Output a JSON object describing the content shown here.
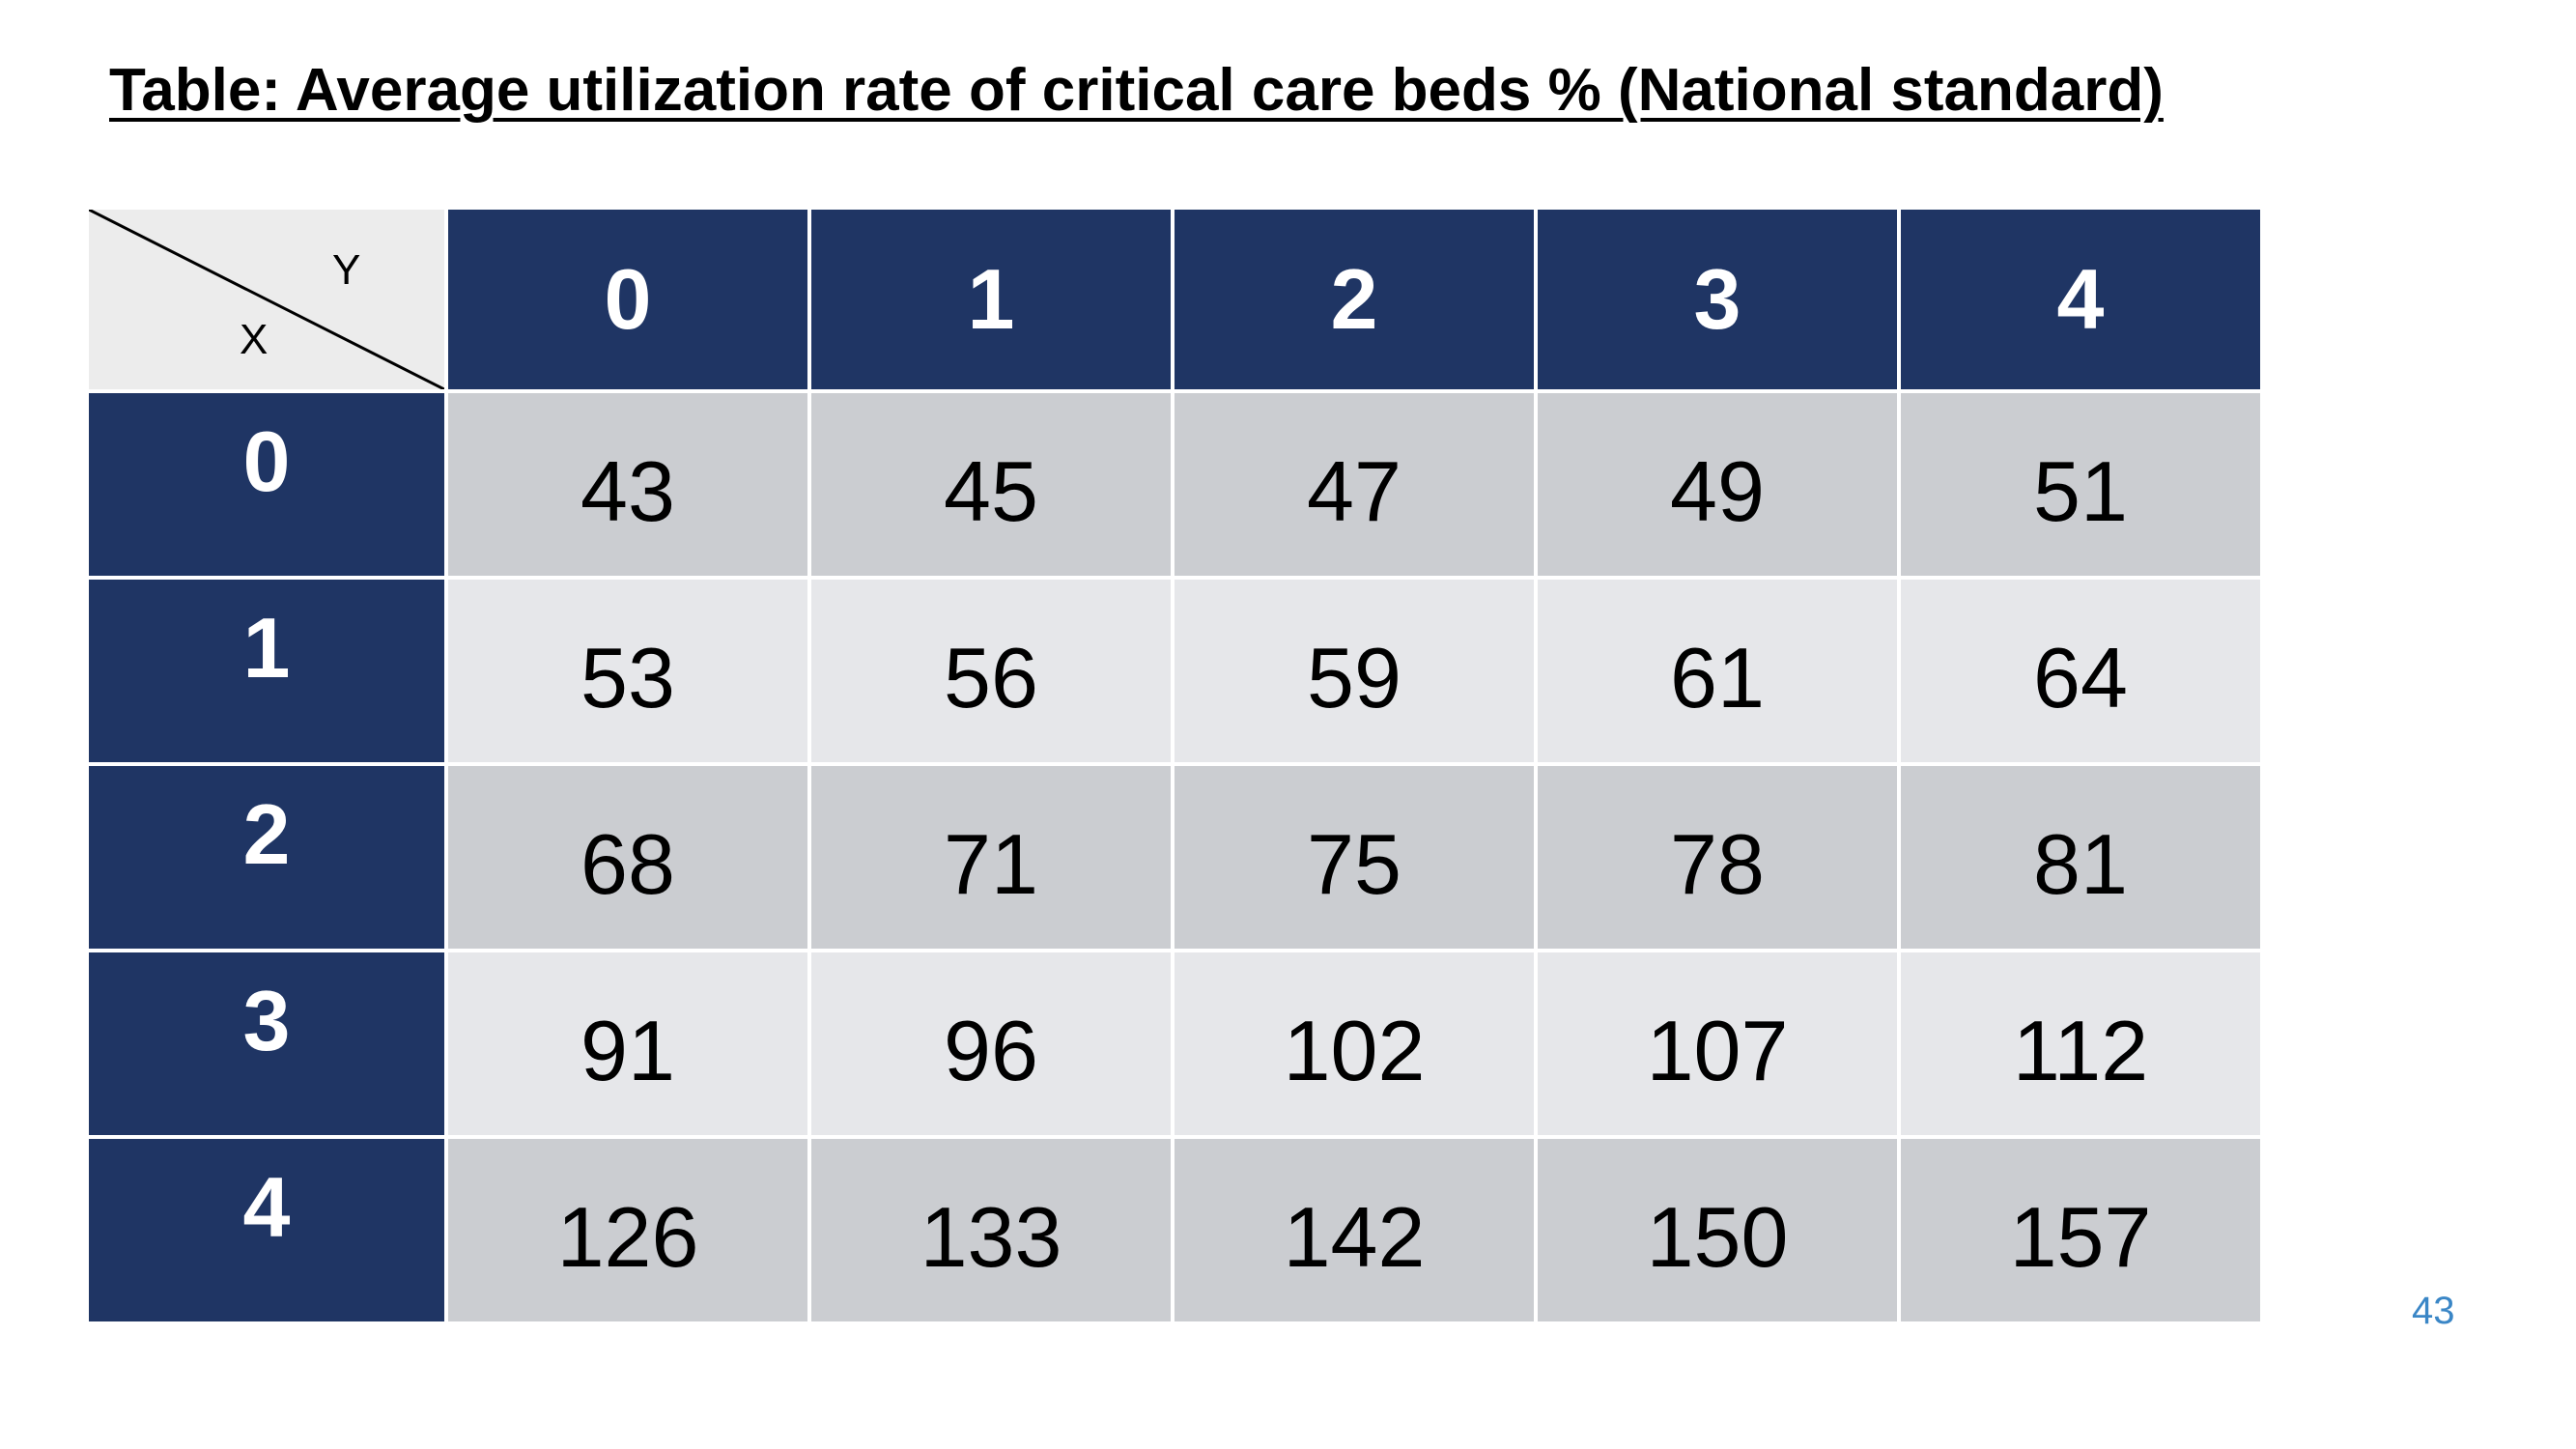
{
  "title": "Table: Average utilization rate of critical care beds % (National standard)",
  "page_number": "43",
  "colors": {
    "header_bg": "#1f3564",
    "header_text": "#ffffff",
    "cell_dark": "#cbcdd1",
    "cell_light": "#e6e7ea",
    "corner_bg": "#ececec",
    "page_number": "#3a86c6"
  },
  "chart_data": {
    "type": "table",
    "title": "Table: Average utilization rate of critical care beds % (National standard)",
    "row_axis_label": "X",
    "column_axis_label": "Y",
    "columns": [
      "0",
      "1",
      "2",
      "3",
      "4"
    ],
    "rows": [
      "0",
      "1",
      "2",
      "3",
      "4"
    ],
    "values": [
      [
        43,
        45,
        47,
        49,
        51
      ],
      [
        53,
        56,
        59,
        61,
        64
      ],
      [
        68,
        71,
        75,
        78,
        81
      ],
      [
        91,
        96,
        102,
        107,
        112
      ],
      [
        126,
        133,
        142,
        150,
        157
      ]
    ]
  }
}
